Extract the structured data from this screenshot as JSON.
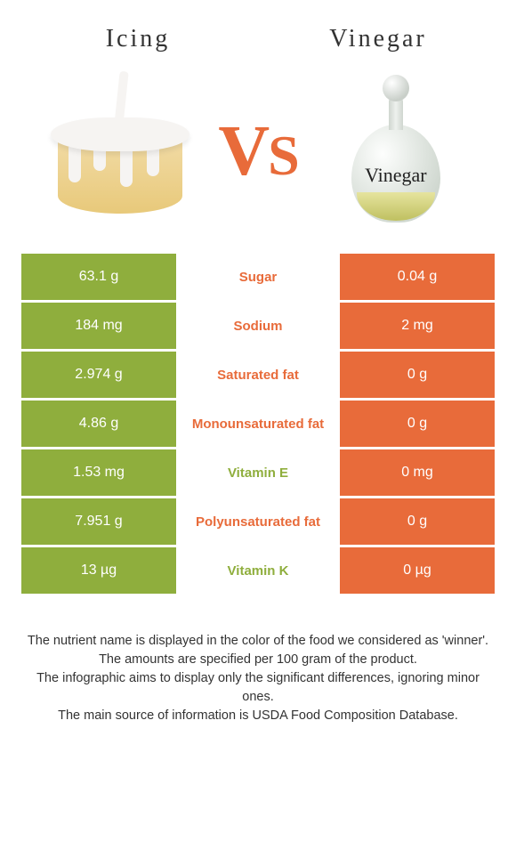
{
  "header": {
    "left_title": "Icing",
    "right_title": "Vinegar",
    "vs_text": "VS"
  },
  "vinegar_label": "Vinegar",
  "colors": {
    "left_bg": "#8fae3d",
    "right_bg": "#e86b3a",
    "winner_text": "#8fae3d",
    "vs_color": "#e86b3a"
  },
  "rows": [
    {
      "left": "63.1 g",
      "label": "Sugar",
      "right": "0.04 g",
      "label_color": "#e86b3a"
    },
    {
      "left": "184 mg",
      "label": "Sodium",
      "right": "2 mg",
      "label_color": "#e86b3a"
    },
    {
      "left": "2.974 g",
      "label": "Saturated fat",
      "right": "0 g",
      "label_color": "#e86b3a"
    },
    {
      "left": "4.86 g",
      "label": "Monounsaturated fat",
      "right": "0 g",
      "label_color": "#e86b3a"
    },
    {
      "left": "1.53 mg",
      "label": "Vitamin E",
      "right": "0 mg",
      "label_color": "#8fae3d"
    },
    {
      "left": "7.951 g",
      "label": "Polyunsaturated fat",
      "right": "0 g",
      "label_color": "#e86b3a"
    },
    {
      "left": "13 µg",
      "label": "Vitamin K",
      "right": "0 µg",
      "label_color": "#8fae3d"
    }
  ],
  "footer": {
    "line1": "The nutrient name is displayed in the color of the food we considered as 'winner'.",
    "line2": "The amounts are specified per 100 gram of the product.",
    "line3": "The infographic aims to display only the significant differences, ignoring minor ones.",
    "line4": "The main source of information is USDA Food Composition Database."
  }
}
